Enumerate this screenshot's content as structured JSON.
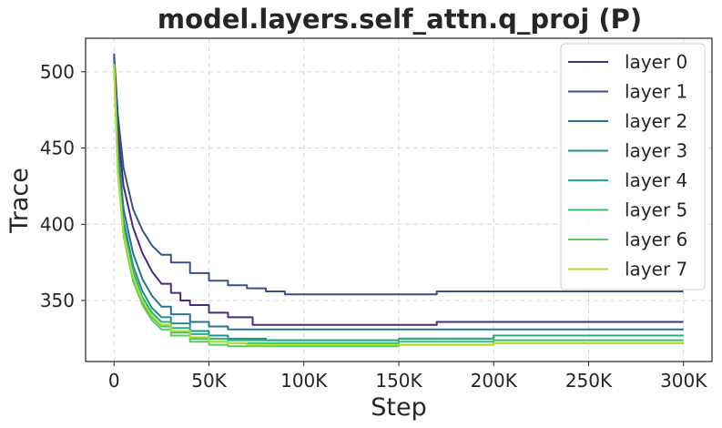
{
  "chart_data": {
    "type": "line",
    "title": "model.layers.self_attn.q_proj (P)",
    "xlabel": "Step",
    "ylabel": "Trace",
    "xlim": [
      -15000,
      315000
    ],
    "ylim": [
      310,
      522
    ],
    "xticks": [
      0,
      50000,
      100000,
      150000,
      200000,
      250000,
      300000
    ],
    "xtick_labels": [
      "0",
      "50K",
      "100K",
      "150K",
      "200K",
      "250K",
      "300K"
    ],
    "yticks": [
      350,
      400,
      450,
      500
    ],
    "ytick_labels": [
      "350",
      "400",
      "450",
      "500"
    ],
    "grid": true,
    "legend_position": "top-right",
    "series": [
      {
        "name": "layer 0",
        "color": "#472c7a",
        "x": [
          0,
          2000,
          5000,
          10000,
          15000,
          20000,
          25000,
          30000,
          35000,
          40000,
          50000,
          60000,
          73000,
          100000,
          170000,
          200000,
          250000,
          300000
        ],
        "y": [
          510,
          462,
          425,
          398,
          381,
          369,
          361,
          355,
          350,
          347,
          342,
          339,
          334,
          334,
          336,
          336,
          336,
          336
        ]
      },
      {
        "name": "layer 1",
        "color": "#3b4f8a",
        "x": [
          0,
          2000,
          5000,
          10000,
          15000,
          20000,
          25000,
          30000,
          40000,
          50000,
          60000,
          70000,
          80000,
          90000,
          130000,
          170000,
          200000,
          250000,
          300000
        ],
        "y": [
          512,
          472,
          437,
          410,
          396,
          386,
          380,
          375,
          368,
          363,
          360,
          358,
          356,
          354,
          354,
          356,
          356,
          356,
          356
        ]
      },
      {
        "name": "layer 2",
        "color": "#2c728e",
        "x": [
          0,
          2000,
          5000,
          10000,
          15000,
          20000,
          25000,
          30000,
          40000,
          50000,
          60000,
          100000,
          150000,
          200000,
          250000,
          300000
        ],
        "y": [
          508,
          452,
          410,
          381,
          364,
          353,
          346,
          341,
          336,
          333,
          331,
          331,
          331,
          331,
          331,
          331
        ]
      },
      {
        "name": "layer 3",
        "color": "#21918c",
        "x": [
          0,
          2000,
          5000,
          10000,
          15000,
          20000,
          25000,
          30000,
          40000,
          50000,
          60000,
          80000,
          100000,
          150000,
          200000,
          250000,
          300000
        ],
        "y": [
          506,
          445,
          403,
          373,
          356,
          345,
          339,
          335,
          330,
          327,
          325,
          324,
          324,
          325,
          327,
          327,
          327
        ]
      },
      {
        "name": "layer 4",
        "color": "#28ae80",
        "x": [
          0,
          2000,
          5000,
          10000,
          15000,
          20000,
          25000,
          30000,
          40000,
          50000,
          60000,
          100000,
          150000,
          200000,
          250000,
          300000
        ],
        "y": [
          505,
          440,
          398,
          369,
          352,
          342,
          336,
          332,
          328,
          325,
          324,
          324,
          325,
          327,
          327,
          327
        ]
      },
      {
        "name": "layer 5",
        "color": "#3fbc73",
        "x": [
          0,
          2000,
          5000,
          10000,
          15000,
          20000,
          25000,
          30000,
          40000,
          50000,
          60000,
          100000,
          150000,
          200000,
          250000,
          300000
        ],
        "y": [
          504,
          437,
          395,
          366,
          349,
          339,
          333,
          329,
          325,
          323,
          322,
          322,
          323,
          324,
          324,
          324
        ]
      },
      {
        "name": "layer 6",
        "color": "#5ec962",
        "x": [
          0,
          2000,
          5000,
          10000,
          15000,
          20000,
          25000,
          30000,
          40000,
          50000,
          60000,
          100000,
          150000,
          200000,
          250000,
          300000
        ],
        "y": [
          503,
          434,
          392,
          363,
          347,
          337,
          331,
          327,
          323,
          321,
          320,
          320,
          321,
          322,
          322,
          322
        ]
      },
      {
        "name": "layer 7",
        "color": "#b5de2b",
        "x": [
          0,
          2000,
          5000,
          10000,
          15000,
          20000,
          25000,
          30000,
          40000,
          50000,
          60000,
          70000,
          100000,
          150000,
          200000,
          250000,
          300000
        ],
        "y": [
          505,
          435,
          394,
          366,
          350,
          340,
          334,
          330,
          326,
          323,
          322,
          321,
          321,
          321,
          322,
          322,
          322
        ]
      }
    ]
  }
}
